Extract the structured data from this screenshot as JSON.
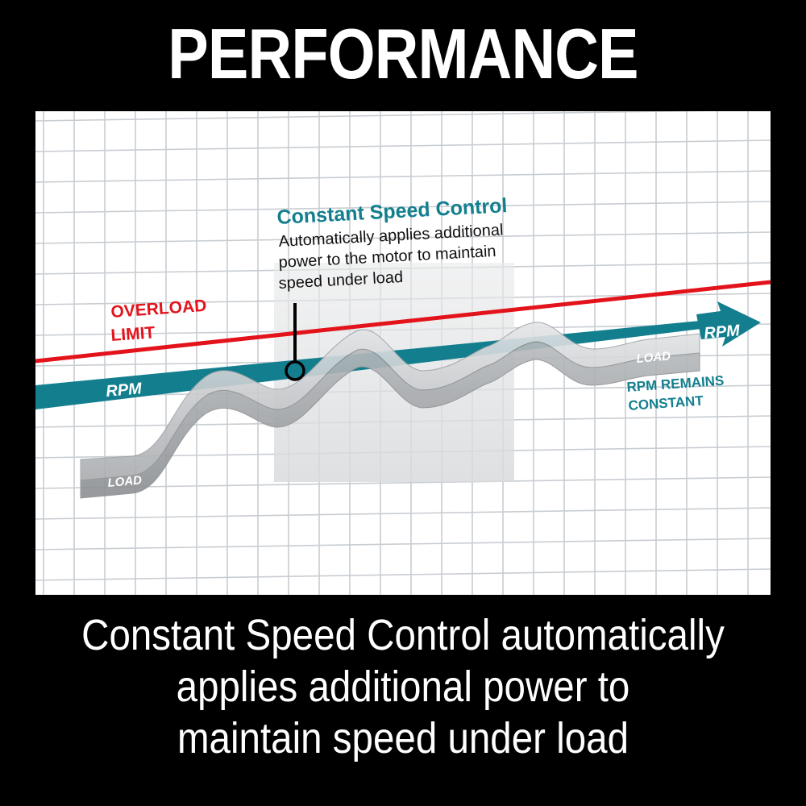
{
  "header": {
    "title": "PERFORMANCE"
  },
  "diagram": {
    "callout": {
      "title": "Constant Speed Control",
      "lines": [
        "Automatically applies additional",
        "power to the motor to maintain",
        "speed under load"
      ]
    },
    "overload_label": [
      "OVERLOAD",
      "LIMIT"
    ],
    "rpm_label_left": "RPM",
    "rpm_label_right": "RPM",
    "load_label_left": "LOAD",
    "load_label_right": "LOAD",
    "rpm_constant_label": [
      "RPM REMAINS",
      "CONSTANT"
    ],
    "colors": {
      "overload_line": "#e3131b",
      "rpm_band": "#137f8e",
      "callout_title": "#137f8e",
      "load_ribbon": "#b7babd",
      "grid": "#c8cdd2"
    }
  },
  "caption": {
    "lines": [
      "Constant Speed Control automatically",
      "applies additional power to",
      "maintain speed under load"
    ]
  }
}
